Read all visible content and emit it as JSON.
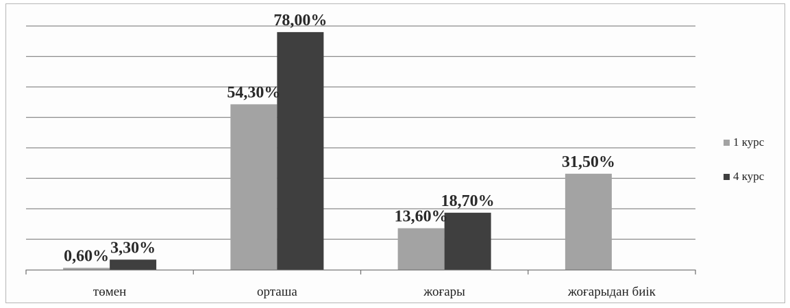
{
  "chart_data": {
    "type": "bar",
    "categories": [
      "төмен",
      "орташа",
      "жоғары",
      "жоғарыдан биік"
    ],
    "series": [
      {
        "name": "1 курс",
        "values": [
          0.6,
          54.3,
          13.6,
          31.5
        ],
        "labels": [
          "0,60%",
          "54,30%",
          "13,60%",
          "31,50%"
        ],
        "color": "#a3a3a3"
      },
      {
        "name": "4 курс",
        "values": [
          3.3,
          78.0,
          18.7,
          null
        ],
        "labels": [
          "3,30%",
          "78,00%",
          "18,70%",
          ""
        ],
        "color": "#3f3f3f"
      }
    ],
    "ylim": [
      0,
      80
    ],
    "grid": true,
    "legend": "right",
    "title": "",
    "xlabel": "",
    "ylabel": ""
  }
}
